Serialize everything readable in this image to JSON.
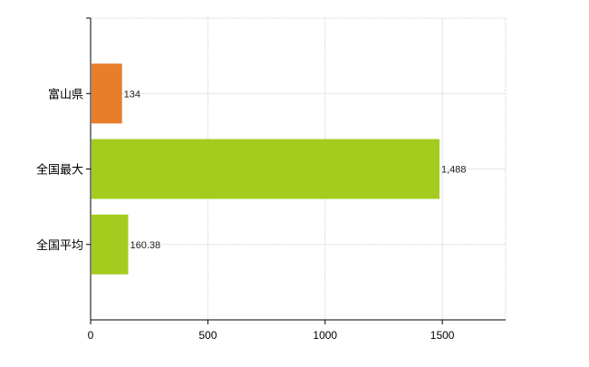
{
  "chart_data": {
    "type": "bar",
    "orientation": "horizontal",
    "categories": [
      "富山県",
      "全国最大",
      "全国平均"
    ],
    "values": [
      134,
      1488,
      160.38
    ],
    "value_labels": [
      "134",
      "1,488",
      "160.38"
    ],
    "bar_colors": [
      "#E87D2A",
      "#A3CC1F",
      "#A3CC1F"
    ],
    "xlim": [
      0,
      1770
    ],
    "xticks": [
      0,
      500,
      1000,
      1500
    ],
    "xtick_labels": [
      "0",
      "500",
      "1000",
      "1500"
    ],
    "grid": true,
    "title": "",
    "xlabel": "",
    "ylabel": ""
  }
}
